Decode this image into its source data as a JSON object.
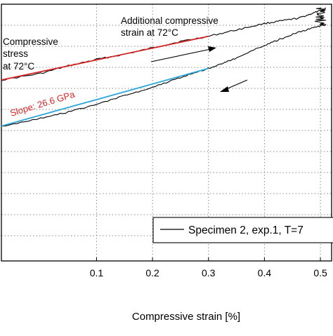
{
  "chart_data": {
    "type": "line",
    "xlabel": "Compressive strain [%]",
    "x_ticks": [
      "0.1",
      "0.2",
      "0.3",
      "0.4",
      "0.5"
    ],
    "xlim": [
      -0.07,
      0.52
    ],
    "ylim": [
      0,
      1
    ],
    "grid": true,
    "legend_position": "bottom-right",
    "legend": "Specimen 2, exp.1, T=7",
    "series": [
      {
        "name": "Specimen 2, exp.1, T=7",
        "color": "#000000",
        "segments": [
          {
            "x": [
              -0.07,
              0.0,
              0.05,
              0.1,
              0.15,
              0.2,
              0.25,
              0.3,
              0.35,
              0.4,
              0.43,
              0.46,
              0.48,
              0.5,
              0.51
            ],
            "y": [
              0.705,
              0.73,
              0.76,
              0.785,
              0.805,
              0.83,
              0.855,
              0.875,
              0.9,
              0.925,
              0.935,
              0.945,
              0.96,
              0.975,
              0.985
            ]
          },
          {
            "x": [
              0.51,
              0.49,
              0.46,
              0.43,
              0.4,
              0.35,
              0.32,
              0.3,
              0.25,
              0.2,
              0.15,
              0.1,
              0.05,
              0.0,
              -0.07
            ],
            "y": [
              0.92,
              0.91,
              0.89,
              0.865,
              0.84,
              0.79,
              0.765,
              0.75,
              0.715,
              0.675,
              0.645,
              0.61,
              0.58,
              0.555,
              0.525
            ]
          }
        ]
      },
      {
        "name": "",
        "color": "#d62728",
        "x": [
          -0.07,
          0.3
        ],
        "y": [
          0.705,
          0.875
        ]
      },
      {
        "name": "",
        "color": "#2aa7d8",
        "x": [
          -0.07,
          0.3
        ],
        "y": [
          0.525,
          0.75
        ]
      }
    ],
    "annotations": {
      "compressive_stress": [
        "Compressive",
        "stress",
        "at 72°C"
      ],
      "additional_strain": [
        "Additional compressive",
        "strain at 72°C"
      ],
      "slope": "Slope: 26.6 GPa"
    }
  }
}
